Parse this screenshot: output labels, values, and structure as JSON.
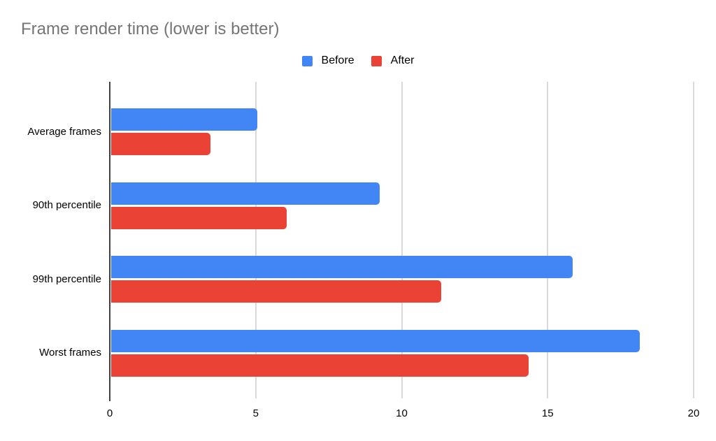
{
  "chart_data": {
    "type": "bar",
    "orientation": "horizontal",
    "title": "Frame render time (lower is better)",
    "categories": [
      "Average frames",
      "90th percentile",
      "99th percentile",
      "Worst frames"
    ],
    "series": [
      {
        "name": "Before",
        "color": "#4285F4",
        "values": [
          5.0,
          9.2,
          15.8,
          18.1
        ]
      },
      {
        "name": "After",
        "color": "#EA4335",
        "values": [
          3.4,
          6.0,
          11.3,
          14.3
        ]
      }
    ],
    "x_axis": {
      "min": 0,
      "max": 20,
      "ticks": [
        0,
        5,
        10,
        15,
        20
      ]
    },
    "grid": true,
    "legend_position": "top-center",
    "colors": {
      "title": "#757575",
      "axis_baseline": "#424242",
      "gridline": "#d9d9d9",
      "tick_label": "#000000",
      "category_label": "#000000",
      "background": "#ffffff"
    }
  }
}
